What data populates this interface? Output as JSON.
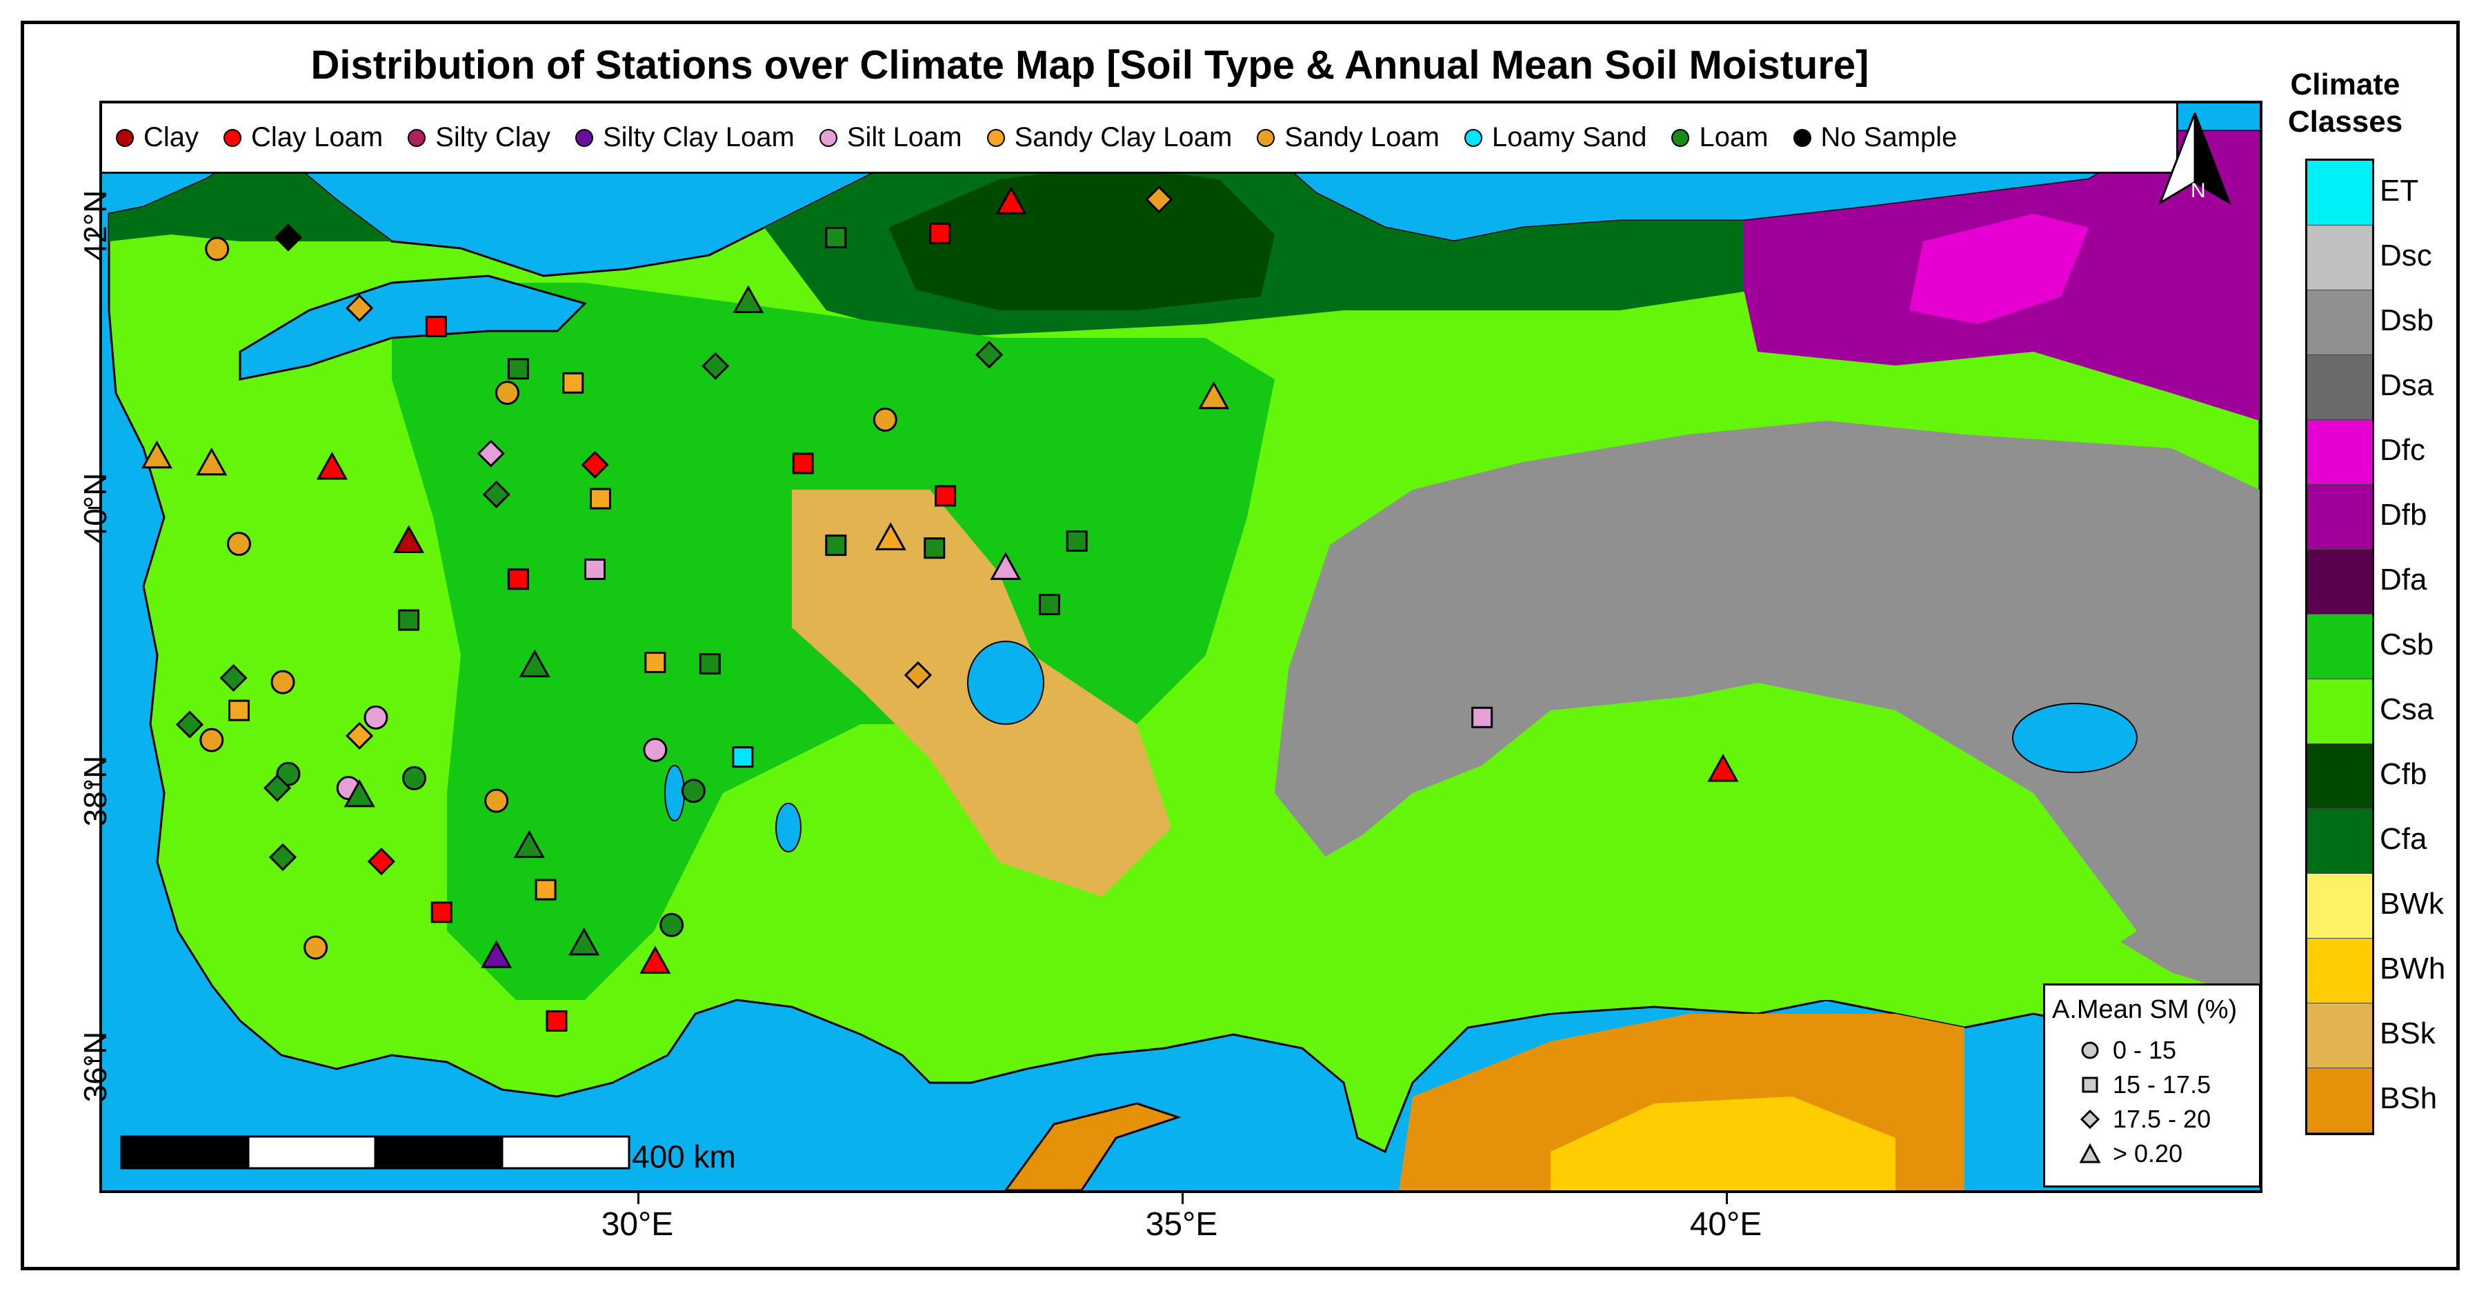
{
  "title": "Distribution of Stations over Climate Map [Soil Type & Annual Mean Soil Moisture]",
  "soil_legend": [
    {
      "label": "Clay",
      "color": "#b40000"
    },
    {
      "label": "Clay Loam",
      "color": "#ff0000"
    },
    {
      "label": "Silty Clay",
      "color": "#b0205a"
    },
    {
      "label": "Silty Clay Loam",
      "color": "#6a0d9e"
    },
    {
      "label": "Silt Loam",
      "color": "#e6a0d8"
    },
    {
      "label": "Sandy Clay Loam",
      "color": "#f5a623"
    },
    {
      "label": "Sandy Loam",
      "color": "#e8a020"
    },
    {
      "label": "Loamy Sand",
      "color": "#00e5ff"
    },
    {
      "label": "Loam",
      "color": "#1a8a1a"
    },
    {
      "label": "No Sample",
      "color": "#000000"
    }
  ],
  "north_arrow": {
    "label": "N"
  },
  "lat_labels": [
    "42°N",
    "40°N",
    "38°N",
    "36°N"
  ],
  "lon_labels": [
    "30°E",
    "35°E",
    "40°E"
  ],
  "scale_bar": {
    "label": "400 km"
  },
  "sm_legend": {
    "title": "A.Mean SM (%)",
    "items": [
      {
        "shape": "circle",
        "label": "0 - 15"
      },
      {
        "shape": "square",
        "label": "15 - 17.5"
      },
      {
        "shape": "diamond",
        "label": "17.5 - 20"
      },
      {
        "shape": "triangle",
        "label": "> 0.20"
      }
    ]
  },
  "climate_legend": {
    "title_line1": "Climate",
    "title_line2": "Classes",
    "classes": [
      {
        "code": "ET",
        "color": "#00f0f8"
      },
      {
        "code": "Dsc",
        "color": "#c0c0c0"
      },
      {
        "code": "Dsb",
        "color": "#909090"
      },
      {
        "code": "Dsa",
        "color": "#6a6a6a"
      },
      {
        "code": "Dfc",
        "color": "#e600d2"
      },
      {
        "code": "Dfb",
        "color": "#a0009a"
      },
      {
        "code": "Dfa",
        "color": "#5a004f"
      },
      {
        "code": "Csb",
        "color": "#14c814"
      },
      {
        "code": "Csa",
        "color": "#64f50a"
      },
      {
        "code": "Cfb",
        "color": "#004a00"
      },
      {
        "code": "Cfa",
        "color": "#006e14"
      },
      {
        "code": "BWk",
        "color": "#fff064"
      },
      {
        "code": "BWh",
        "color": "#ffcd00"
      },
      {
        "code": "BSk",
        "color": "#e1b450"
      },
      {
        "code": "BSh",
        "color": "#e6910a"
      }
    ]
  },
  "stations": [
    {
      "lon": 27.2,
      "lat": 41.75,
      "soil": "No Sample",
      "sm": "diamond"
    },
    {
      "lon": 26.55,
      "lat": 41.67,
      "soil": "Sandy Loam",
      "sm": "circle"
    },
    {
      "lon": 27.85,
      "lat": 41.25,
      "soil": "Sandy Loam",
      "sm": "diamond"
    },
    {
      "lon": 28.55,
      "lat": 41.12,
      "soil": "Clay Loam",
      "sm": "square"
    },
    {
      "lon": 29.3,
      "lat": 40.82,
      "soil": "Loam",
      "sm": "square"
    },
    {
      "lon": 29.2,
      "lat": 40.65,
      "soil": "Sandy Loam",
      "sm": "circle"
    },
    {
      "lon": 29.8,
      "lat": 40.72,
      "soil": "Sandy Clay Loam",
      "sm": "square"
    },
    {
      "lon": 26.0,
      "lat": 40.2,
      "soil": "Sandy Loam",
      "sm": "triangle"
    },
    {
      "lon": 26.5,
      "lat": 40.15,
      "soil": "Sandy Loam",
      "sm": "triangle"
    },
    {
      "lon": 27.6,
      "lat": 40.12,
      "soil": "Clay Loam",
      "sm": "triangle"
    },
    {
      "lon": 29.05,
      "lat": 40.22,
      "soil": "Silt Loam",
      "sm": "diamond"
    },
    {
      "lon": 30.0,
      "lat": 40.14,
      "soil": "Clay Loam",
      "sm": "diamond"
    },
    {
      "lon": 29.1,
      "lat": 39.93,
      "soil": "Loam",
      "sm": "diamond"
    },
    {
      "lon": 30.05,
      "lat": 39.9,
      "soil": "Sandy Clay Loam",
      "sm": "square"
    },
    {
      "lon": 26.75,
      "lat": 39.58,
      "soil": "Sandy Loam",
      "sm": "circle"
    },
    {
      "lon": 28.3,
      "lat": 39.6,
      "soil": "Clay",
      "sm": "triangle"
    },
    {
      "lon": 29.3,
      "lat": 39.33,
      "soil": "Clay Loam",
      "sm": "square"
    },
    {
      "lon": 30.0,
      "lat": 39.4,
      "soil": "Silt Loam",
      "sm": "square"
    },
    {
      "lon": 28.3,
      "lat": 39.04,
      "soil": "Loam",
      "sm": "square"
    },
    {
      "lon": 29.45,
      "lat": 38.72,
      "soil": "Loam",
      "sm": "triangle"
    },
    {
      "lon": 26.7,
      "lat": 38.63,
      "soil": "Loam",
      "sm": "diamond"
    },
    {
      "lon": 27.15,
      "lat": 38.6,
      "soil": "Sandy Loam",
      "sm": "circle"
    },
    {
      "lon": 26.75,
      "lat": 38.4,
      "soil": "Sandy Clay Loam",
      "sm": "square"
    },
    {
      "lon": 26.3,
      "lat": 38.3,
      "soil": "Loam",
      "sm": "diamond"
    },
    {
      "lon": 26.5,
      "lat": 38.19,
      "soil": "Sandy Loam",
      "sm": "circle"
    },
    {
      "lon": 27.85,
      "lat": 38.22,
      "soil": "Sandy Clay Loam",
      "sm": "diamond"
    },
    {
      "lon": 28.0,
      "lat": 38.35,
      "soil": "Silt Loam",
      "sm": "circle"
    },
    {
      "lon": 27.2,
      "lat": 37.95,
      "soil": "Loam",
      "sm": "circle"
    },
    {
      "lon": 27.1,
      "lat": 37.85,
      "soil": "Loam",
      "sm": "diamond"
    },
    {
      "lon": 27.75,
      "lat": 37.85,
      "soil": "Silt Loam",
      "sm": "circle"
    },
    {
      "lon": 27.85,
      "lat": 37.8,
      "soil": "Loam",
      "sm": "triangle"
    },
    {
      "lon": 28.35,
      "lat": 37.92,
      "soil": "Loam",
      "sm": "circle"
    },
    {
      "lon": 29.1,
      "lat": 37.76,
      "soil": "Sandy Loam",
      "sm": "circle"
    },
    {
      "lon": 29.4,
      "lat": 37.44,
      "soil": "Loam",
      "sm": "triangle"
    },
    {
      "lon": 27.15,
      "lat": 37.36,
      "soil": "Loam",
      "sm": "diamond"
    },
    {
      "lon": 28.05,
      "lat": 37.33,
      "soil": "Clay Loam",
      "sm": "diamond"
    },
    {
      "lon": 29.55,
      "lat": 37.13,
      "soil": "Sandy Clay Loam",
      "sm": "square"
    },
    {
      "lon": 28.6,
      "lat": 36.97,
      "soil": "Clay Loam",
      "sm": "square"
    },
    {
      "lon": 27.45,
      "lat": 36.72,
      "soil": "Sandy Loam",
      "sm": "circle"
    },
    {
      "lon": 29.1,
      "lat": 36.66,
      "soil": "Silty Clay Loam",
      "sm": "triangle"
    },
    {
      "lon": 29.9,
      "lat": 36.75,
      "soil": "Loam",
      "sm": "triangle"
    },
    {
      "lon": 30.55,
      "lat": 36.62,
      "soil": "Clay Loam",
      "sm": "triangle"
    },
    {
      "lon": 30.7,
      "lat": 36.88,
      "soil": "Loam",
      "sm": "circle"
    },
    {
      "lon": 29.65,
      "lat": 36.2,
      "soil": "Clay Loam",
      "sm": "square"
    },
    {
      "lon": 30.55,
      "lat": 38.74,
      "soil": "Sandy Clay Loam",
      "sm": "square"
    },
    {
      "lon": 30.55,
      "lat": 38.12,
      "soil": "Silt Loam",
      "sm": "circle"
    },
    {
      "lon": 31.05,
      "lat": 38.73,
      "soil": "Loam",
      "sm": "square"
    },
    {
      "lon": 31.35,
      "lat": 38.07,
      "soil": "Loamy Sand",
      "sm": "square"
    },
    {
      "lon": 30.9,
      "lat": 37.83,
      "soil": "Loam",
      "sm": "circle"
    },
    {
      "lon": 31.1,
      "lat": 40.84,
      "soil": "Loam",
      "sm": "diamond"
    },
    {
      "lon": 31.4,
      "lat": 41.3,
      "soil": "Loam",
      "sm": "triangle"
    },
    {
      "lon": 32.2,
      "lat": 41.75,
      "soil": "Loam",
      "sm": "square"
    },
    {
      "lon": 33.15,
      "lat": 41.78,
      "soil": "Clay Loam",
      "sm": "square"
    },
    {
      "lon": 33.8,
      "lat": 42.0,
      "soil": "Clay Loam",
      "sm": "triangle"
    },
    {
      "lon": 35.15,
      "lat": 42.02,
      "soil": "Sandy Loam",
      "sm": "diamond"
    },
    {
      "lon": 33.6,
      "lat": 40.92,
      "soil": "Loam",
      "sm": "diamond"
    },
    {
      "lon": 32.65,
      "lat": 40.46,
      "soil": "Sandy Loam",
      "sm": "circle"
    },
    {
      "lon": 35.65,
      "lat": 40.62,
      "soil": "Sandy Loam",
      "sm": "triangle"
    },
    {
      "lon": 31.9,
      "lat": 40.15,
      "soil": "Clay Loam",
      "sm": "square"
    },
    {
      "lon": 33.2,
      "lat": 39.92,
      "soil": "Clay Loam",
      "sm": "square"
    },
    {
      "lon": 32.2,
      "lat": 39.57,
      "soil": "Loam",
      "sm": "square"
    },
    {
      "lon": 32.7,
      "lat": 39.62,
      "soil": "Sandy Clay Loam",
      "sm": "triangle"
    },
    {
      "lon": 33.1,
      "lat": 39.55,
      "soil": "Loam",
      "sm": "square"
    },
    {
      "lon": 34.4,
      "lat": 39.6,
      "soil": "Loam",
      "sm": "square"
    },
    {
      "lon": 33.75,
      "lat": 39.41,
      "soil": "Silt Loam",
      "sm": "triangle"
    },
    {
      "lon": 34.15,
      "lat": 39.15,
      "soil": "Loam",
      "sm": "square"
    },
    {
      "lon": 32.95,
      "lat": 38.65,
      "soil": "Sandy Loam",
      "sm": "diamond"
    },
    {
      "lon": 38.1,
      "lat": 38.35,
      "soil": "Silt Loam",
      "sm": "square"
    },
    {
      "lon": 40.3,
      "lat": 37.98,
      "soil": "Clay Loam",
      "sm": "triangle"
    }
  ]
}
